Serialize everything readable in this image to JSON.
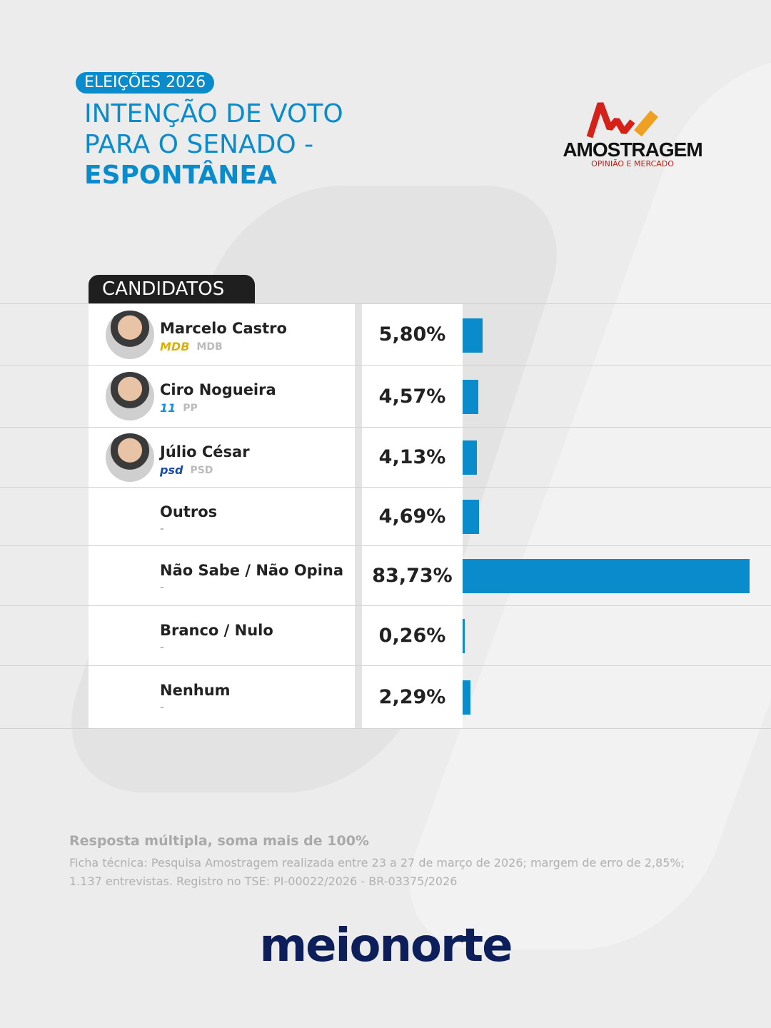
{
  "header": {
    "tag": "ELEIÇÕES 2026",
    "title_line1": "INTENÇÃO DE VOTO",
    "title_line2": "PARA O SENADO -",
    "title_bold": "ESPONTÂNEA"
  },
  "pollster_logo": {
    "name": "AMOSTRAGEM",
    "subtitle": "OPINIÃO E MERCADO"
  },
  "table_header": "CANDIDATOS",
  "colors": {
    "accent": "#0a8ccc",
    "dark": "#1f1f1f",
    "brand": "#0c1f5a"
  },
  "chart_data": {
    "type": "bar",
    "orientation": "horizontal",
    "xlim": [
      0,
      83.73
    ],
    "categories": [
      "Marcelo Castro",
      "Ciro Nogueira",
      "Júlio César",
      "Outros",
      "Não Sabe / Não Opina",
      "Branco / Nulo",
      "Nenhum"
    ],
    "values": [
      5.8,
      4.57,
      4.13,
      4.69,
      83.73,
      0.26,
      2.29
    ],
    "labels": [
      "5,80%",
      "4,57%",
      "4,13%",
      "4,69%",
      "83,73%",
      "0,26%",
      "2,29%"
    ],
    "parties": [
      "MDB",
      "PP",
      "PSD",
      "-",
      "-",
      "-",
      "-"
    ],
    "party_logos": [
      "MDB",
      "11",
      "psd",
      "",
      "",
      "",
      ""
    ],
    "has_photo": [
      true,
      true,
      true,
      false,
      false,
      false,
      false
    ]
  },
  "footer": {
    "note": "Resposta múltipla, soma mais de 100%",
    "ficha": "Ficha técnica: Pesquisa Amostragem realizada entre 23 a 27 de março de 2026; margem de erro de 2,85%; 1.137 entrevistas. Registro no TSE: PI-00022/2026 - BR-03375/2026",
    "brand": "meionorte"
  }
}
